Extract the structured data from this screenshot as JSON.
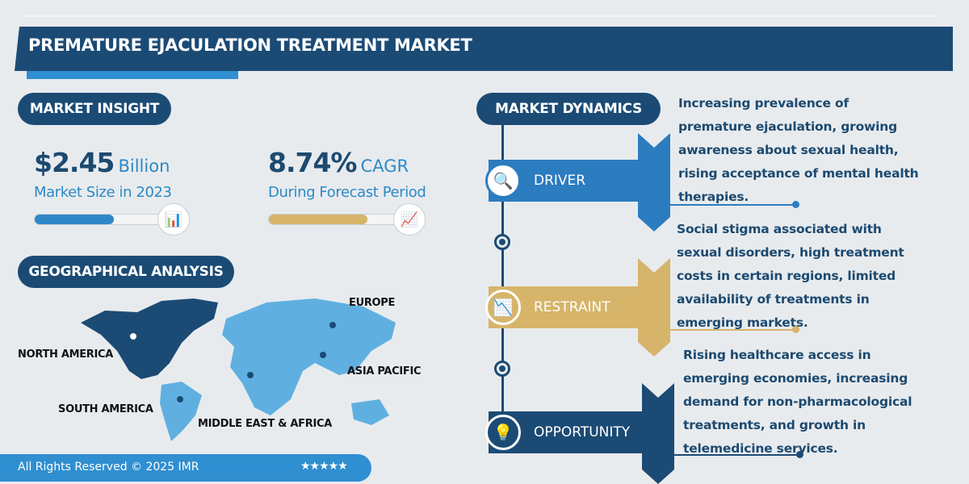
{
  "title": "PREMATURE EJACULATION TREATMENT MARKET",
  "colors": {
    "navy": "#1b4b75",
    "blue": "#2f87c8",
    "gold": "#d6b46a",
    "background": "#e8ebee"
  },
  "market_insight": {
    "heading": "MARKET INSIGHT",
    "size": {
      "value": "$2.45",
      "unit": "Billion",
      "label": "Market Size in 2023",
      "bar_fill_percent": 60,
      "icon": "bar-chart-dollar-icon"
    },
    "cagr": {
      "value": "8.74%",
      "unit": "CAGR",
      "label": "During Forecast Period",
      "bar_fill_percent": 75,
      "icon": "growth-chart-icon"
    }
  },
  "geographical_analysis": {
    "heading": "GEOGRAPHICAL ANALYSIS",
    "regions": [
      "NORTH AMERICA",
      "SOUTH AMERICA",
      "MIDDLE EAST & AFRICA",
      "ASIA PACIFIC",
      "EUROPE"
    ],
    "highlighted_region": "NORTH AMERICA"
  },
  "market_dynamics": {
    "heading": "MARKET DYNAMICS",
    "items": [
      {
        "label": "DRIVER",
        "icon": "analysis-icon",
        "lines": [
          "Increasing prevalence of",
          "premature ejaculation, growing",
          "awareness about sexual health,",
          "rising acceptance of mental health",
          "therapies."
        ]
      },
      {
        "label": "RESTRAINT",
        "icon": "declining-chart-icon",
        "lines": [
          "Social stigma associated with",
          "sexual disorders, high treatment",
          "costs in certain regions, limited",
          "availability of treatments in",
          "emerging markets."
        ]
      },
      {
        "label": "OPPORTUNITY",
        "icon": "lightbulb-icon",
        "lines": [
          "Rising healthcare access in",
          "emerging economies, increasing",
          "demand for non-pharmacological",
          "treatments, and growth in",
          "telemedicine services."
        ]
      }
    ]
  },
  "footer": {
    "copyright": "All Rights Reserved © 2025 IMR",
    "stars": "★★★★★"
  }
}
